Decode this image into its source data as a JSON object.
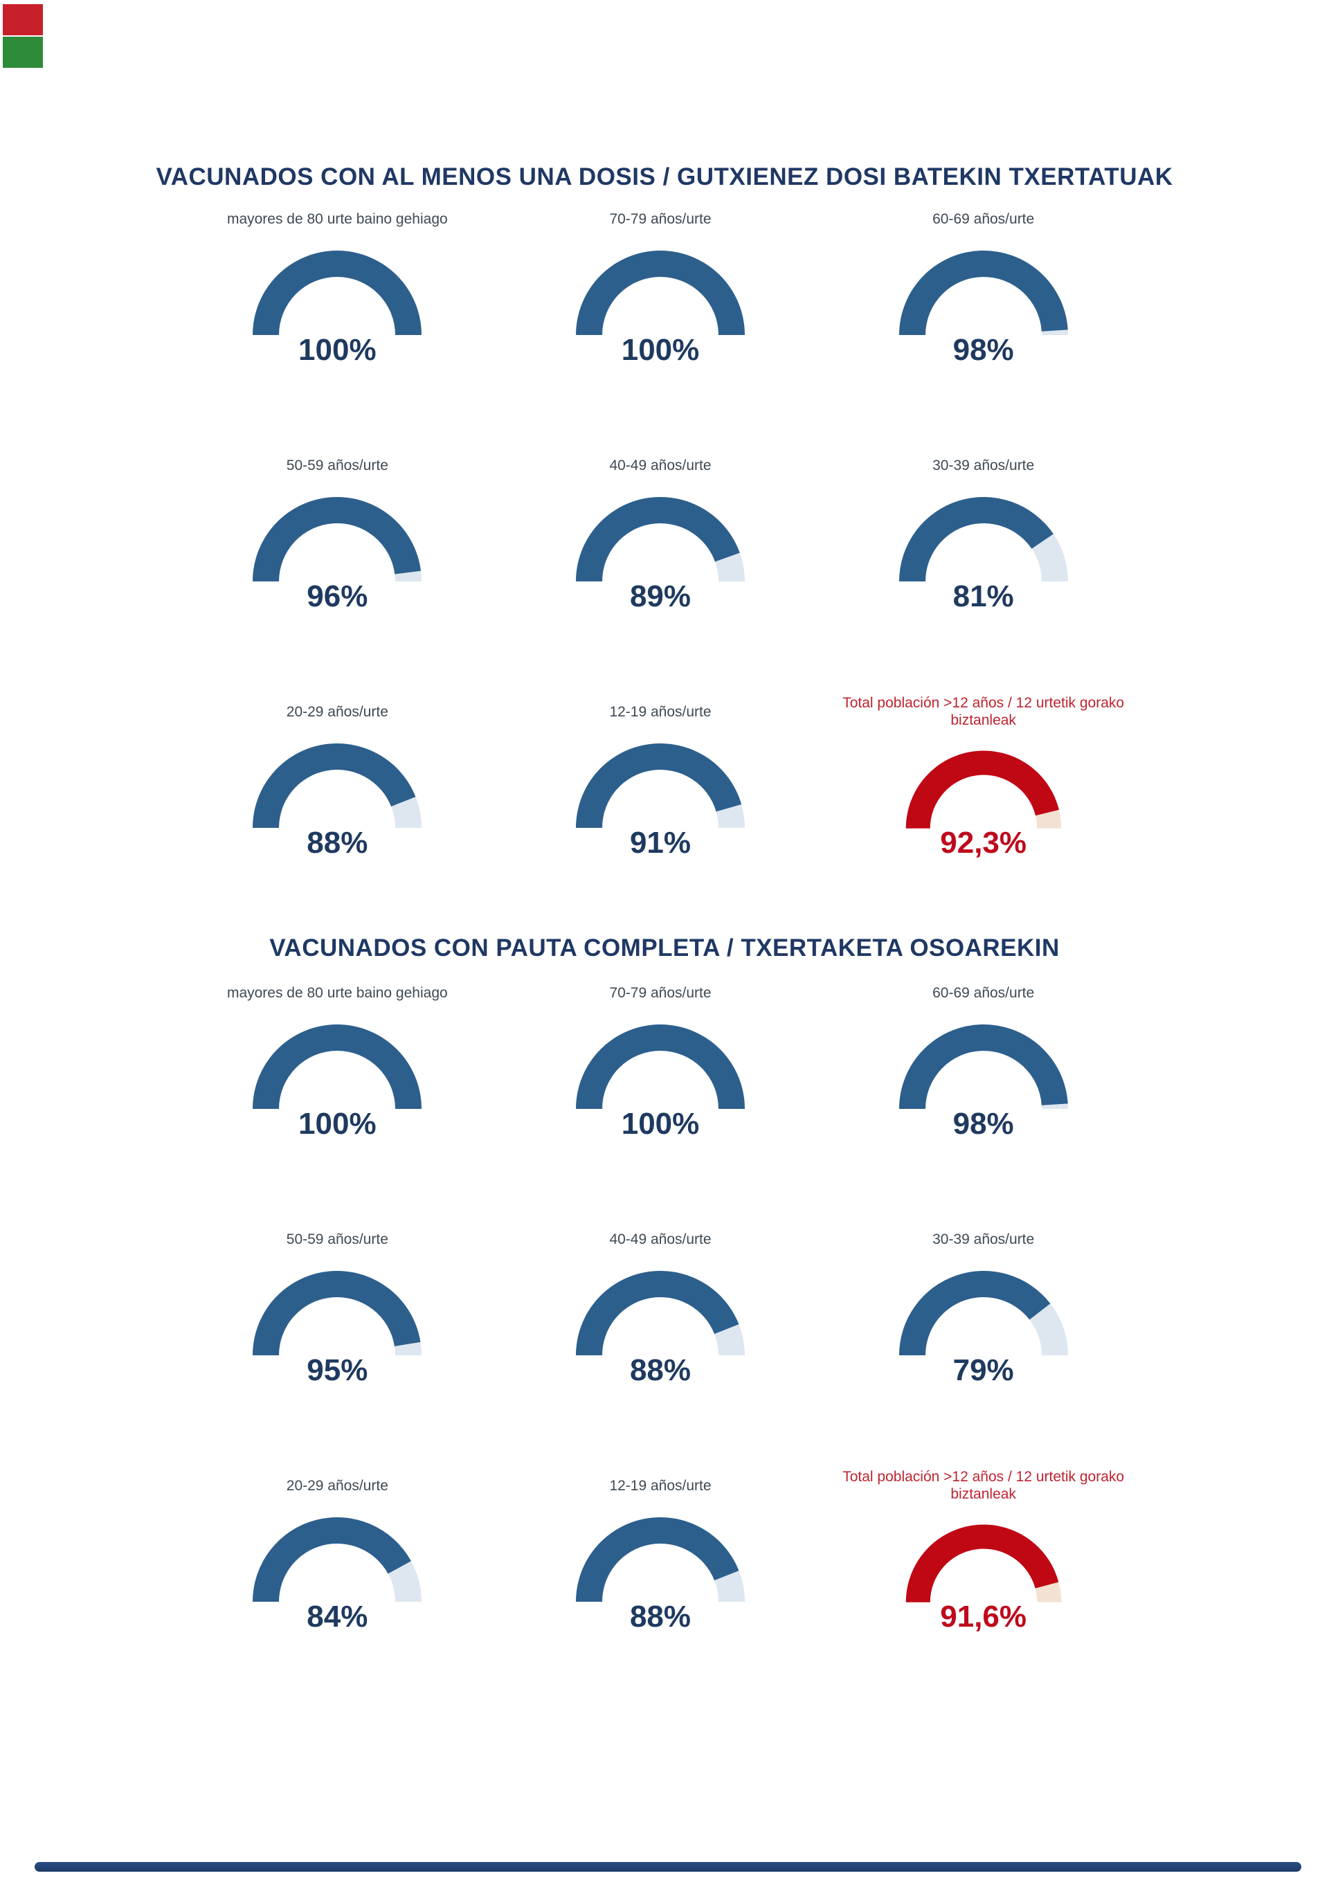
{
  "page_title": "Vacunados / Txertatuak - gauge dashboard",
  "colors": {
    "title": "#1F3864",
    "category_label": "#3E4953",
    "footer_bar": "#24457C",
    "corner_mark_red": "#C8202A",
    "corner_mark_green": "#2E8B3A",
    "themes": {
      "blue": {
        "arc": "#2D5F8D",
        "rest": "#DEE7F0",
        "value_text": "#1F3A60"
      },
      "red": {
        "arc": "#C00714",
        "rest": "#F3E2D4",
        "value_text": "#BE0A1C",
        "label_text": "#BF2330"
      }
    }
  },
  "sections": [
    {
      "title": "VACUNADOS CON AL MENOS UNA DOSIS / GUTXIENEZ DOSI BATEKIN TXERTATUAK",
      "gauges": [
        {
          "label": "mayores de 80 urte baino gehiago",
          "value": 100,
          "value_label": "100%",
          "theme": "blue"
        },
        {
          "label": "70-79 años/urte",
          "value": 100,
          "value_label": "100%",
          "theme": "blue"
        },
        {
          "label": "60-69 años/urte",
          "value": 98,
          "value_label": "98%",
          "theme": "blue"
        },
        {
          "label": "50-59 años/urte",
          "value": 96,
          "value_label": "96%",
          "theme": "blue"
        },
        {
          "label": "40-49 años/urte",
          "value": 89,
          "value_label": "89%",
          "theme": "blue"
        },
        {
          "label": "30-39 años/urte",
          "value": 81,
          "value_label": "81%",
          "theme": "blue"
        },
        {
          "label": "20-29 años/urte",
          "value": 88,
          "value_label": "88%",
          "theme": "blue"
        },
        {
          "label": "12-19 años/urte",
          "value": 91,
          "value_label": "91%",
          "theme": "blue"
        },
        {
          "label": "Total población >12 años / 12 urtetik gorako biztanleak",
          "value": 92.3,
          "value_label": "92,3%",
          "theme": "red"
        }
      ]
    },
    {
      "title": "VACUNADOS CON PAUTA COMPLETA / TXERTAKETA OSOAREKIN",
      "gauges": [
        {
          "label": "mayores de 80 urte baino gehiago",
          "value": 100,
          "value_label": "100%",
          "theme": "blue"
        },
        {
          "label": "70-79 años/urte",
          "value": 100,
          "value_label": "100%",
          "theme": "blue"
        },
        {
          "label": "60-69 años/urte",
          "value": 98,
          "value_label": "98%",
          "theme": "blue"
        },
        {
          "label": "50-59 años/urte",
          "value": 95,
          "value_label": "95%",
          "theme": "blue"
        },
        {
          "label": "40-49 años/urte",
          "value": 88,
          "value_label": "88%",
          "theme": "blue"
        },
        {
          "label": "30-39 años/urte",
          "value": 79,
          "value_label": "79%",
          "theme": "blue"
        },
        {
          "label": "20-29 años/urte",
          "value": 84,
          "value_label": "84%",
          "theme": "blue"
        },
        {
          "label": "12-19 años/urte",
          "value": 88,
          "value_label": "88%",
          "theme": "blue"
        },
        {
          "label": "Total población >12 años / 12 urtetik gorako biztanleak",
          "value": 91.6,
          "value_label": "91,6%",
          "theme": "red"
        }
      ]
    }
  ],
  "chart_data": [
    {
      "type": "pie",
      "variant": "semicircle-gauge-grid",
      "title": "VACUNADOS CON AL MENOS UNA DOSIS / GUTXIENEZ DOSI BATEKIN TXERTATUAK",
      "unit": "%",
      "gauge_range": [
        0,
        100
      ],
      "categories": [
        "mayores de 80 urte baino gehiago",
        "70-79 años/urte",
        "60-69 años/urte",
        "50-59 años/urte",
        "40-49 años/urte",
        "30-39 años/urte",
        "20-29 años/urte",
        "12-19 años/urte",
        "Total población >12 años / 12 urtetik gorako biztanleak"
      ],
      "values": [
        100,
        100,
        98,
        96,
        89,
        81,
        88,
        91,
        92.3
      ],
      "value_labels": [
        "100%",
        "100%",
        "98%",
        "96%",
        "89%",
        "81%",
        "88%",
        "91%",
        "92,3%"
      ],
      "series_color": "#2D5F8D",
      "remainder_color": "#DEE7F0",
      "highlight_index": 8,
      "highlight_color": "#C00714",
      "legend": "none",
      "grid": "off"
    },
    {
      "type": "pie",
      "variant": "semicircle-gauge-grid",
      "title": "VACUNADOS CON PAUTA COMPLETA / TXERTAKETA OSOAREKIN",
      "unit": "%",
      "gauge_range": [
        0,
        100
      ],
      "categories": [
        "mayores de 80 urte baino gehiago",
        "70-79 años/urte",
        "60-69 años/urte",
        "50-59 años/urte",
        "40-49 años/urte",
        "30-39 años/urte",
        "20-29 años/urte",
        "12-19 años/urte",
        "Total población >12 años / 12 urtetik gorako biztanleak"
      ],
      "values": [
        100,
        100,
        98,
        95,
        88,
        79,
        84,
        88,
        91.6
      ],
      "value_labels": [
        "100%",
        "100%",
        "98%",
        "95%",
        "88%",
        "79%",
        "84%",
        "88%",
        "91,6%"
      ],
      "series_color": "#2D5F8D",
      "remainder_color": "#DEE7F0",
      "highlight_index": 8,
      "highlight_color": "#C00714",
      "legend": "none",
      "grid": "off"
    }
  ]
}
